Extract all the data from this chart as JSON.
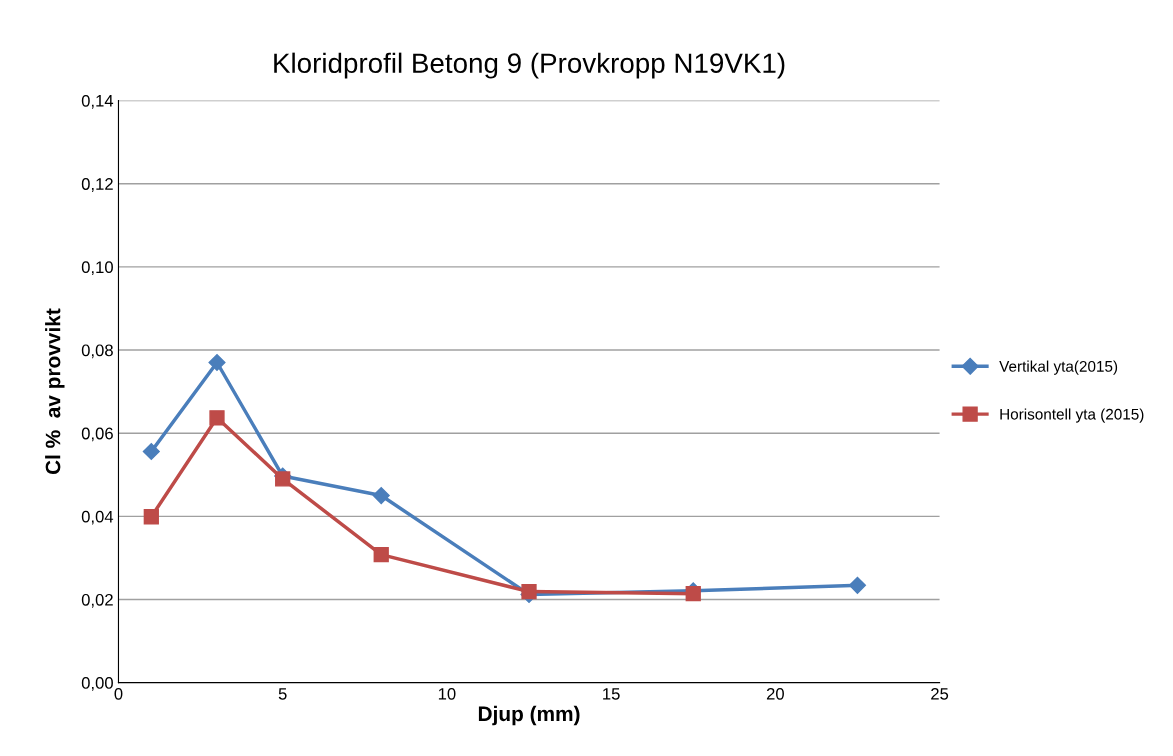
{
  "chart_data": {
    "type": "line",
    "title": "Kloridprofil Betong 9 (Provkropp N19VK1)",
    "xlabel": "Djup (mm)",
    "ylabel": "Cl %  av provvikt",
    "xlim": [
      0,
      25
    ],
    "xticks": [
      0,
      5,
      10,
      15,
      20,
      25
    ],
    "ylim": [
      0,
      0.14
    ],
    "yticks": [
      {
        "value": 0,
        "label": "0,00"
      },
      {
        "value": 0.02,
        "label": "0,02"
      },
      {
        "value": 0.04,
        "label": "0,04"
      },
      {
        "value": 0.06,
        "label": "0,06"
      },
      {
        "value": 0.08,
        "label": "0,08"
      },
      {
        "value": 0.1,
        "label": "0,10"
      },
      {
        "value": 0.12,
        "label": "0,12"
      },
      {
        "value": 0.14,
        "label": "0,14"
      }
    ],
    "grid": "y",
    "legend": "right",
    "series": [
      {
        "name": "Vertikal yta(2015)",
        "color": "#4a7ebb",
        "marker": "diamond",
        "x": [
          1,
          3,
          5,
          8,
          12.5,
          17.5,
          22.5
        ],
        "values": [
          0.0556,
          0.077,
          0.0497,
          0.045,
          0.0212,
          0.0221,
          0.0234
        ]
      },
      {
        "name": "Horisontell yta (2015)",
        "color": "#be4b48",
        "marker": "square",
        "x": [
          1,
          3,
          5,
          8,
          12.5,
          17.5
        ],
        "values": [
          0.0399,
          0.0637,
          0.049,
          0.0308,
          0.0219,
          0.0214
        ]
      }
    ]
  }
}
